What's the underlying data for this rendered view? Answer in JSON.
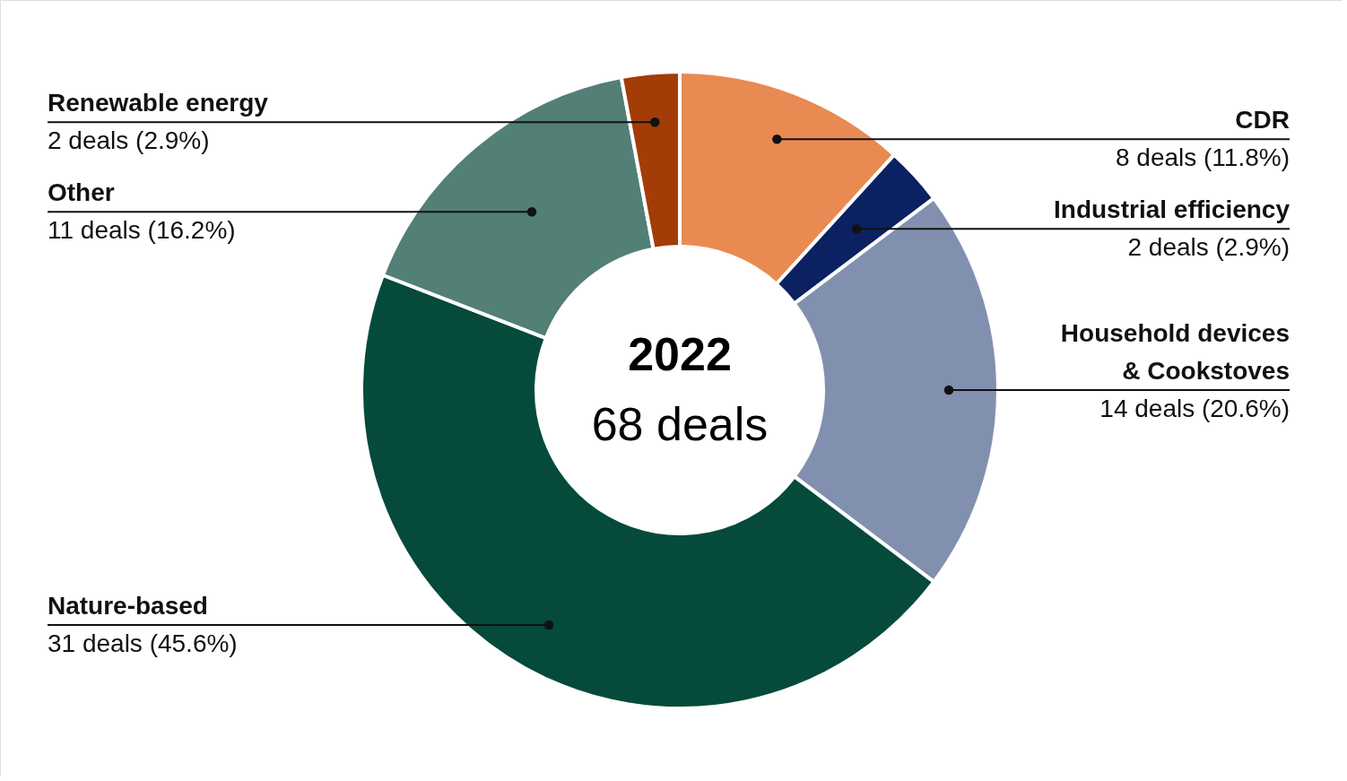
{
  "chart_data": {
    "type": "donut",
    "title": "2022",
    "subtitle": "68 deals",
    "categories": [
      "CDR",
      "Industrial efficiency",
      "Household devices & Cookstoves",
      "Nature-based",
      "Other",
      "Renewable energy"
    ],
    "values": [
      8,
      2,
      14,
      31,
      11,
      2
    ],
    "colors": [
      "#e98a53",
      "#0b2161",
      "#8290b0",
      "#054a3b",
      "#527f76",
      "#a33c06"
    ],
    "value_labels": [
      "8 deals (11.8%)",
      "2 deals (2.9%)",
      "14 deals (20.6%)",
      "31 deals (45.6%)",
      "11 deals (16.2%)",
      "2 deals (2.9%)"
    ]
  }
}
